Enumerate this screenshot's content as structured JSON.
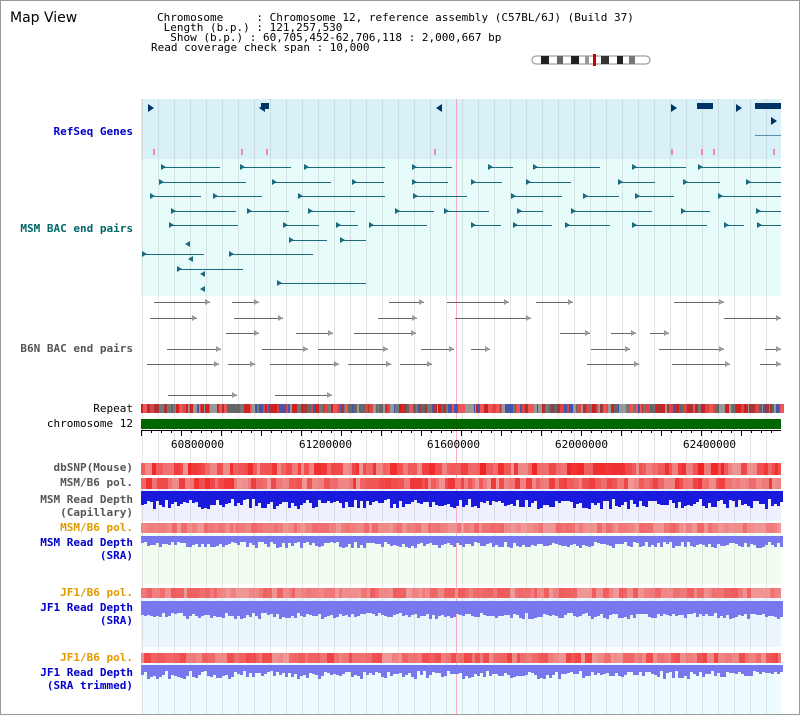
{
  "title": "Map View",
  "info": {
    "chromosome": "Chromosome     : Chromosome 12, reference assembly (C57BL/6J) (Build 37)",
    "length": " Length (b.p.) : 121,257,530",
    "show": "  Show (b.p.) : 60,705,452-62,706,118 : 2,000,667 bp",
    "coverage": "Read coverage check span : 10,000"
  },
  "tracks": {
    "refseq": "RefSeq Genes",
    "msm_bac": "MSM BAC end pairs",
    "b6n_bac": "B6N BAC end pairs",
    "repeat": "Repeat",
    "chromosome": "chromosome 12",
    "dbsnp": "dbSNP(Mouse)",
    "msm_b6_pol_1": "MSM/B6 pol.",
    "msm_read_depth_cap": "MSM Read Depth\n(Capillary)",
    "msm_b6_pol_2": "MSM/B6 pol.",
    "msm_read_depth_sra": "MSM Read Depth\n(SRA)",
    "jf1_b6_pol_1": "JF1/B6 pol.",
    "jf1_read_depth_sra": "JF1 Read Depth\n(SRA)",
    "jf1_b6_pol_2": "JF1/B6 pol.",
    "jf1_read_depth_trim": "JF1 Read Depth\n(SRA trimmed)"
  },
  "axis": {
    "ticks": [
      "60800000",
      "61200000",
      "61600000",
      "62000000",
      "62400000"
    ]
  },
  "colors": {
    "refseq_bg": "#d8f0f8",
    "bac_bg": "#e8fbfb",
    "genes": "#003366",
    "msm_bac": "#1a6a80",
    "b6n_bac": "#666666",
    "chromosome": "#006600",
    "read_depth_dark": "#1a1add",
    "read_depth_light": "#7777ee",
    "pol_red": "#ee2222"
  }
}
